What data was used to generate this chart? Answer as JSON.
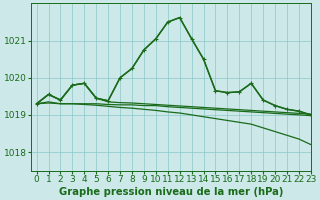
{
  "bg_color": "#cce8e8",
  "grid_color": "#8ac8c8",
  "line_color": "#1a6b1a",
  "title": "Graphe pression niveau de la mer (hPa)",
  "tick_fontsize": 6.5,
  "title_fontsize": 7.2,
  "xlim": [
    -0.5,
    23
  ],
  "ylim": [
    1017.5,
    1022.0
  ],
  "yticks": [
    1018,
    1019,
    1020,
    1021
  ],
  "xticks": [
    0,
    1,
    2,
    3,
    4,
    5,
    6,
    7,
    8,
    9,
    10,
    11,
    12,
    13,
    14,
    15,
    16,
    17,
    18,
    19,
    20,
    21,
    22,
    23
  ],
  "series": [
    {
      "x": [
        0,
        1,
        2,
        3,
        4,
        5,
        6,
        7,
        8,
        9,
        10,
        11,
        12,
        13,
        14,
        15,
        16,
        17,
        18,
        19,
        20,
        21,
        22,
        23
      ],
      "y": [
        1019.3,
        1019.35,
        1019.3,
        1019.3,
        1019.3,
        1019.3,
        1019.28,
        1019.27,
        1019.27,
        1019.25,
        1019.25,
        1019.22,
        1019.2,
        1019.18,
        1019.16,
        1019.14,
        1019.12,
        1019.1,
        1019.08,
        1019.06,
        1019.04,
        1019.02,
        1019.0,
        1018.98
      ],
      "marker": null,
      "lw": 0.9
    },
    {
      "x": [
        0,
        1,
        2,
        3,
        4,
        5,
        6,
        7,
        8,
        9,
        10,
        11,
        12,
        13,
        14,
        15,
        16,
        17,
        18,
        19,
        20,
        21,
        22,
        23
      ],
      "y": [
        1019.3,
        1019.32,
        1019.3,
        1019.3,
        1019.28,
        1019.26,
        1019.23,
        1019.2,
        1019.18,
        1019.15,
        1019.12,
        1019.08,
        1019.05,
        1019.0,
        1018.95,
        1018.9,
        1018.85,
        1018.8,
        1018.75,
        1018.65,
        1018.55,
        1018.45,
        1018.35,
        1018.2
      ],
      "marker": null,
      "lw": 0.9
    },
    {
      "x": [
        0,
        1,
        2,
        3,
        4,
        5,
        6,
        7,
        8,
        9,
        10,
        11,
        12,
        13,
        14,
        15,
        16,
        17,
        18,
        19,
        20,
        21,
        22,
        23
      ],
      "y": [
        1019.3,
        1019.55,
        1019.4,
        1019.8,
        1019.85,
        1019.45,
        1019.35,
        1019.33,
        1019.32,
        1019.3,
        1019.28,
        1019.26,
        1019.24,
        1019.22,
        1019.2,
        1019.18,
        1019.16,
        1019.14,
        1019.12,
        1019.1,
        1019.08,
        1019.06,
        1019.04,
        1019.02
      ],
      "marker": null,
      "lw": 0.9
    },
    {
      "x": [
        0,
        1,
        2,
        3,
        4,
        5,
        6,
        7,
        8,
        9,
        10,
        11,
        12,
        13,
        14,
        15,
        16,
        17,
        18,
        19,
        20,
        21,
        22,
        23
      ],
      "y": [
        1019.3,
        1019.55,
        1019.4,
        1019.8,
        1019.85,
        1019.45,
        1019.38,
        1020.0,
        1020.25,
        1020.75,
        1021.05,
        1021.5,
        1021.62,
        1021.05,
        1020.5,
        1019.65,
        1019.6,
        1019.62,
        1019.85,
        1019.4,
        1019.25,
        1019.15,
        1019.1,
        1019.0
      ],
      "marker": null,
      "lw": 0.9
    },
    {
      "x": [
        0,
        1,
        2,
        3,
        4,
        5,
        6,
        7,
        8,
        9,
        10,
        11,
        12,
        13,
        14,
        15,
        16,
        17,
        18,
        19,
        20,
        21,
        22,
        23
      ],
      "y": [
        1019.3,
        1019.55,
        1019.4,
        1019.8,
        1019.85,
        1019.45,
        1019.38,
        1020.0,
        1020.25,
        1020.75,
        1021.05,
        1021.5,
        1021.62,
        1021.05,
        1020.5,
        1019.65,
        1019.6,
        1019.62,
        1019.85,
        1019.4,
        1019.25,
        1019.15,
        1019.1,
        1019.0
      ],
      "marker": "+",
      "lw": 1.1
    }
  ]
}
